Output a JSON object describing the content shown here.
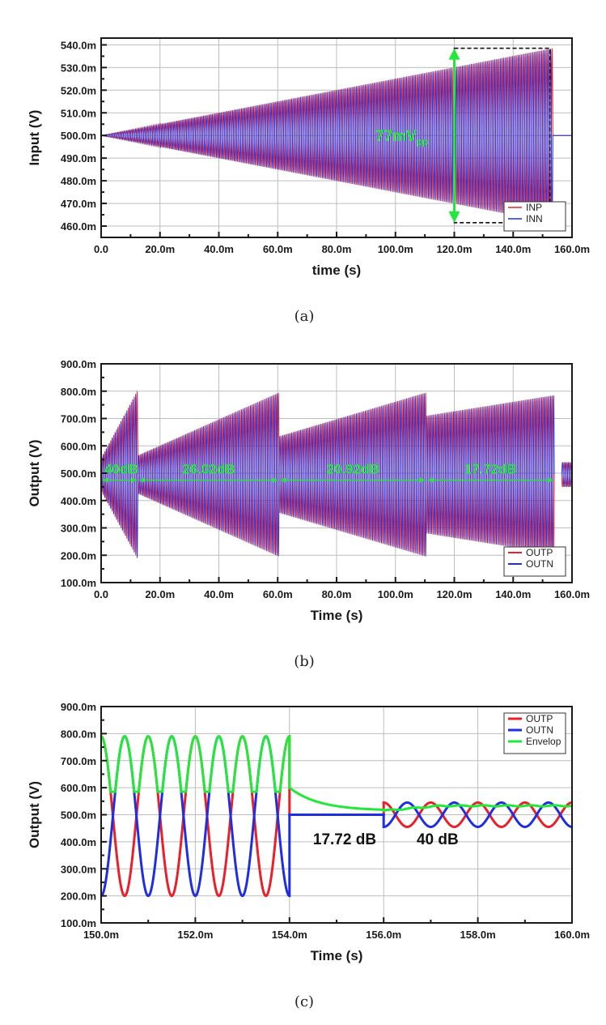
{
  "colors": {
    "positive": "#e8202a",
    "negative": "#1f2ee0",
    "envelope": "#22e83a",
    "annotation": "#22e83a",
    "grid": "#bdbdbd"
  },
  "chart_data": [
    {
      "type": "line",
      "caption": "(a)",
      "xlabel": "time (s)",
      "ylabel": "Input (V)",
      "x_ticks": [
        "0.0",
        "20.0m",
        "40.0m",
        "60.0m",
        "80.0m",
        "100.0m",
        "120.0m",
        "140.0m",
        "160.0m"
      ],
      "y_ticks": [
        "460.0m",
        "470.0m",
        "480.0m",
        "490.0m",
        "500.0m",
        "510.0m",
        "520.0m",
        "530.0m",
        "540.0m"
      ],
      "xlim": [
        0,
        0.16
      ],
      "ylim": [
        0.455,
        0.543
      ],
      "grid": true,
      "legend_position": "bottom-right",
      "series": [
        {
          "name": "INP",
          "color": "#e8202a",
          "offset": 0.5,
          "start_amplitude": 0.0,
          "end_amplitude": 0.0385,
          "t_start": 0.0,
          "t_end": 0.1535,
          "phase": 1
        },
        {
          "name": "INN",
          "color": "#1f2ee0",
          "offset": 0.5,
          "start_amplitude": 0.0,
          "end_amplitude": 0.0385,
          "t_start": 0.0,
          "t_end": 0.1535,
          "phase": -1
        }
      ],
      "annotations": [
        {
          "text": "77mV",
          "subscript": "pp",
          "x": 0.121,
          "y": 0.5
        }
      ]
    },
    {
      "type": "line",
      "caption": "(b)",
      "xlabel": "Time (s)",
      "ylabel": "Output (V)",
      "x_ticks": [
        "0.0",
        "20.0m",
        "40.0m",
        "60.0m",
        "80.0m",
        "100.0m",
        "120.0m",
        "140.0m",
        "160.0m"
      ],
      "y_ticks": [
        "100.0m",
        "200.0m",
        "300.0m",
        "400.0m",
        "500.0m",
        "600.0m",
        "700.0m",
        "800.0m",
        "900.0m"
      ],
      "xlim": [
        0,
        0.16
      ],
      "ylim": [
        0.1,
        0.9
      ],
      "grid": true,
      "legend_position": "bottom-right",
      "series": [
        {
          "name": "OUTP",
          "color": "#e8202a",
          "phase": 1
        },
        {
          "name": "OUTN",
          "color": "#1f2ee0",
          "phase": -1
        }
      ],
      "segments": [
        {
          "t_start": 0.0,
          "t_end": 0.0125,
          "amp_start": 0.06,
          "amp_end": 0.31,
          "gain_label": "40dB"
        },
        {
          "t_start": 0.0125,
          "t_end": 0.0605,
          "amp_start": 0.07,
          "amp_end": 0.3,
          "gain_label": "26.02dB"
        },
        {
          "t_start": 0.0605,
          "t_end": 0.1105,
          "amp_start": 0.14,
          "amp_end": 0.3,
          "gain_label": "20.92dB"
        },
        {
          "t_start": 0.1105,
          "t_end": 0.154,
          "amp_start": 0.215,
          "amp_end": 0.29,
          "gain_label": "17.72dB"
        },
        {
          "t_start": 0.1565,
          "t_end": 0.16,
          "amp_start": 0.045,
          "amp_end": 0.045,
          "gain_label": ""
        }
      ],
      "annotation_y": 0.475
    },
    {
      "type": "line",
      "caption": "(c)",
      "xlabel": "Time (s)",
      "ylabel": "Output (V)",
      "x_ticks": [
        "150.0m",
        "152.0m",
        "154.0m",
        "156.0m",
        "158.0m",
        "160.0m"
      ],
      "y_ticks": [
        "100.0m",
        "200.0m",
        "300.0m",
        "400.0m",
        "500.0m",
        "600.0m",
        "700.0m",
        "800.0m",
        "900.0m"
      ],
      "xlim": [
        0.15,
        0.16
      ],
      "ylim": [
        0.1,
        0.9
      ],
      "grid": true,
      "legend_position": "top-right",
      "series": [
        {
          "name": "OUTP",
          "color": "#e8202a"
        },
        {
          "name": "OUTN",
          "color": "#1f2ee0"
        },
        {
          "name": "Envelop",
          "color": "#22e83a"
        }
      ],
      "signal": {
        "frequency_hz": 1000,
        "phase_0": 1.5708,
        "high_gain": {
          "t_start": 0.15,
          "t_end": 0.154,
          "offset": 0.495,
          "amplitude": 0.295
        },
        "settled": {
          "t_start": 0.154,
          "t_end": 0.156,
          "value": 0.5
        },
        "low_gain": {
          "t_start": 0.156,
          "t_end": 0.16,
          "offset": 0.5,
          "amplitude": 0.045
        },
        "envelope_decay_to": 0.515
      },
      "annotations": [
        {
          "text": "17.72 dB",
          "x": 0.1545,
          "y": 0.39
        },
        {
          "text": "40 dB",
          "x": 0.1567,
          "y": 0.39
        }
      ]
    }
  ]
}
